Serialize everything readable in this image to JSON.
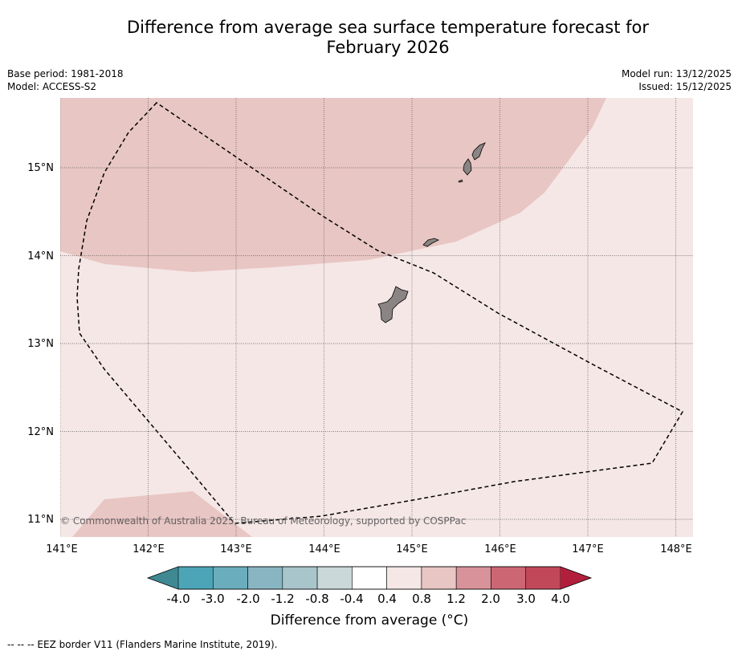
{
  "title": {
    "line1": "Difference from average sea surface temperature forecast for",
    "line2": "February 2026"
  },
  "header": {
    "base_period": "Base period: 1981-2018",
    "model": "Model: ACCESS-S2",
    "model_run": "Model run: 13/12/2025",
    "issued": "Issued: 15/12/2025"
  },
  "map": {
    "lon_range": [
      141.0,
      148.2
    ],
    "lat_range": [
      10.8,
      15.8
    ],
    "lon_ticks": [
      "141°E",
      "142°E",
      "143°E",
      "144°E",
      "145°E",
      "146°E",
      "147°E",
      "148°E"
    ],
    "lat_ticks": [
      "15°N",
      "14°N",
      "13°N",
      "12°N",
      "11°N"
    ],
    "copyright": "© Commonwealth of Australia 2025, Bureau of Meteorology, supported by COSPPac",
    "fill_colors": {
      "light_anomaly": "#f5e7e6",
      "mid_anomaly": "#e8c6c3",
      "land": "#8a8484"
    }
  },
  "colorbar": {
    "tick_labels": [
      "-4.0",
      "-3.0",
      "-2.0",
      "-1.2",
      "-0.8",
      "-0.4",
      "0.4",
      "0.8",
      "1.2",
      "2.0",
      "3.0",
      "4.0"
    ],
    "colors": [
      "#4ba5b6",
      "#6aaebd",
      "#88b5c1",
      "#a8c5cb",
      "#cbd8da",
      "#ffffff",
      "#f5e7e6",
      "#e8c6c3",
      "#d8929a",
      "#cc6673",
      "#c04858"
    ],
    "extend_low_color": "#3f8993",
    "extend_high_color": "#b21f3c",
    "label": "Difference from average (°C)"
  },
  "footnote": "--  --  -- EEZ border V11 (Flanders Marine Institute, 2019)."
}
